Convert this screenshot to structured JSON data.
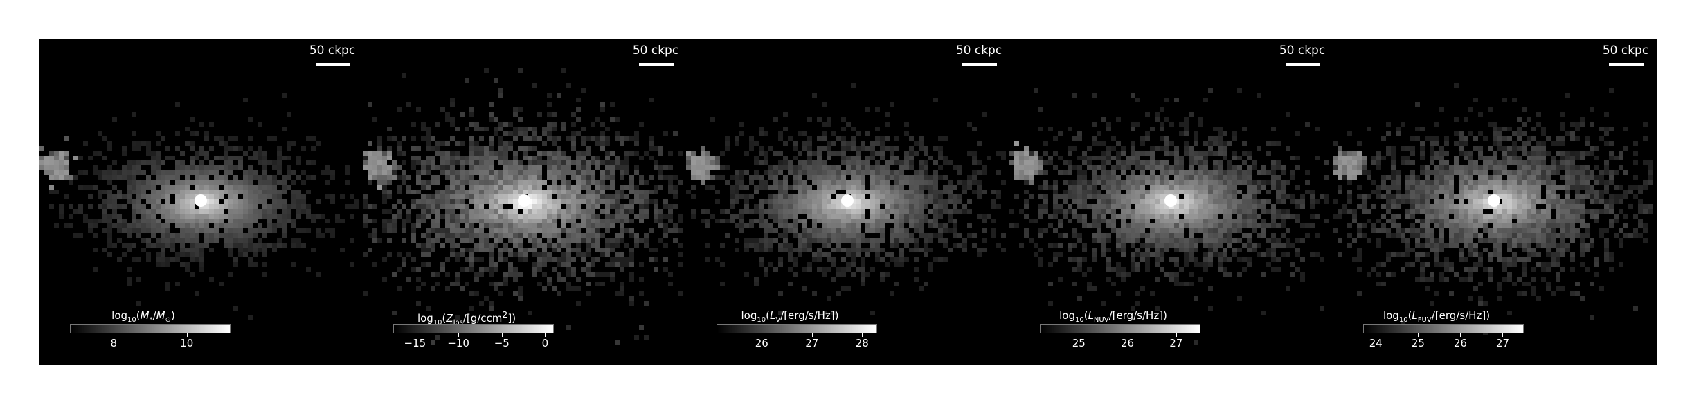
{
  "figure": {
    "panels": [
      {
        "id": "stellar-mass",
        "scale_label": "50 ckpc",
        "colorbar_title_html": "log<sub>10</sub>(<i>M</i><sub>*</sub>/<i>M</i><sub>⊙</sub>)",
        "colorbar_range": [
          6.8,
          11.2
        ],
        "ticks": [
          {
            "value": 8,
            "label": "8"
          },
          {
            "value": 10,
            "label": "10"
          }
        ],
        "core_brightness": 1.0,
        "spread": 0.55,
        "scatter": 0.35
      },
      {
        "id": "metal-surface-density",
        "scale_label": "50 ckpc",
        "colorbar_title_html": "log<sub>10</sub>(<i>Z</i><sub>los</sub>/[g/ccm<sup>2</sup>])",
        "colorbar_range": [
          -17.5,
          1.0
        ],
        "ticks": [
          {
            "value": -15,
            "label": "−15"
          },
          {
            "value": -10,
            "label": "−10"
          },
          {
            "value": -5,
            "label": "−5"
          },
          {
            "value": 0,
            "label": "0"
          }
        ],
        "core_brightness": 0.95,
        "spread": 1.0,
        "scatter": 0.95
      },
      {
        "id": "v-band-luminosity",
        "scale_label": "50 ckpc",
        "colorbar_title_html": "log<sub>10</sub>(<i>L</i><sub>V</sub>/[erg/s/Hz])",
        "colorbar_range": [
          25.1,
          28.3
        ],
        "ticks": [
          {
            "value": 26,
            "label": "26"
          },
          {
            "value": 27,
            "label": "27"
          },
          {
            "value": 28,
            "label": "28"
          }
        ],
        "core_brightness": 0.95,
        "spread": 0.7,
        "scatter": 0.6
      },
      {
        "id": "nuv-luminosity",
        "scale_label": "50 ckpc",
        "colorbar_title_html": "log<sub>10</sub>(<i>L</i><sub>NUV</sub>/[erg/s/Hz])",
        "colorbar_range": [
          24.2,
          27.5
        ],
        "ticks": [
          {
            "value": 25,
            "label": "25"
          },
          {
            "value": 26,
            "label": "26"
          },
          {
            "value": 27,
            "label": "27"
          }
        ],
        "core_brightness": 0.9,
        "spread": 0.8,
        "scatter": 0.75
      },
      {
        "id": "fuv-luminosity",
        "scale_label": "50 ckpc",
        "colorbar_title_html": "log<sub>10</sub>(<i>L</i><sub>FUV</sub>/[erg/s/Hz])",
        "colorbar_range": [
          23.7,
          27.5
        ],
        "ticks": [
          {
            "value": 24,
            "label": "24"
          },
          {
            "value": 25,
            "label": "25"
          },
          {
            "value": 26,
            "label": "26"
          },
          {
            "value": 27,
            "label": "27"
          }
        ],
        "core_brightness": 0.88,
        "spread": 0.85,
        "scatter": 0.8
      }
    ]
  }
}
